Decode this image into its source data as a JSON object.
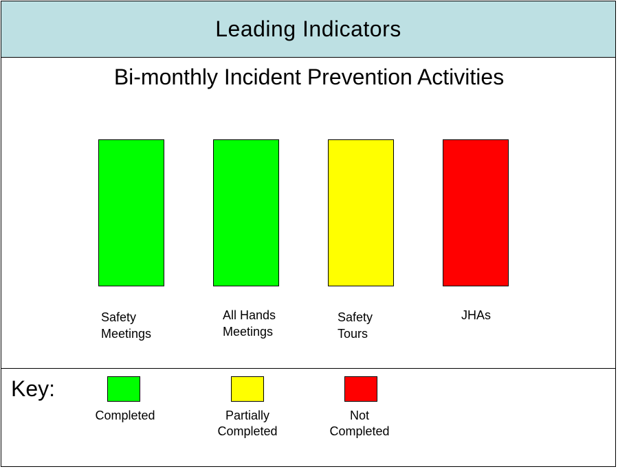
{
  "header": {
    "title": "Leading Indicators"
  },
  "subtitle": "Bi-monthly Incident Prevention Activities",
  "colors": {
    "header_bg": "#bde0e3",
    "completed": "#00ff00",
    "partially_completed": "#ffff00",
    "not_completed": "#ff0000"
  },
  "activities": [
    {
      "label": "Safety\nMeetings",
      "status": "Completed",
      "color": "#00ff00"
    },
    {
      "label": "All Hands\nMeetings",
      "status": "Completed",
      "color": "#00ff00"
    },
    {
      "label": "Safety\nTours",
      "status": "Partially Completed",
      "color": "#ffff00"
    },
    {
      "label": "JHAs",
      "status": "Not Completed",
      "color": "#ff0000"
    }
  ],
  "key": {
    "title": "Key:",
    "items": [
      {
        "label": "Completed",
        "color": "#00ff00"
      },
      {
        "label": "Partially\nCompleted",
        "color": "#ffff00"
      },
      {
        "label": "Not\nCompleted",
        "color": "#ff0000"
      }
    ]
  }
}
